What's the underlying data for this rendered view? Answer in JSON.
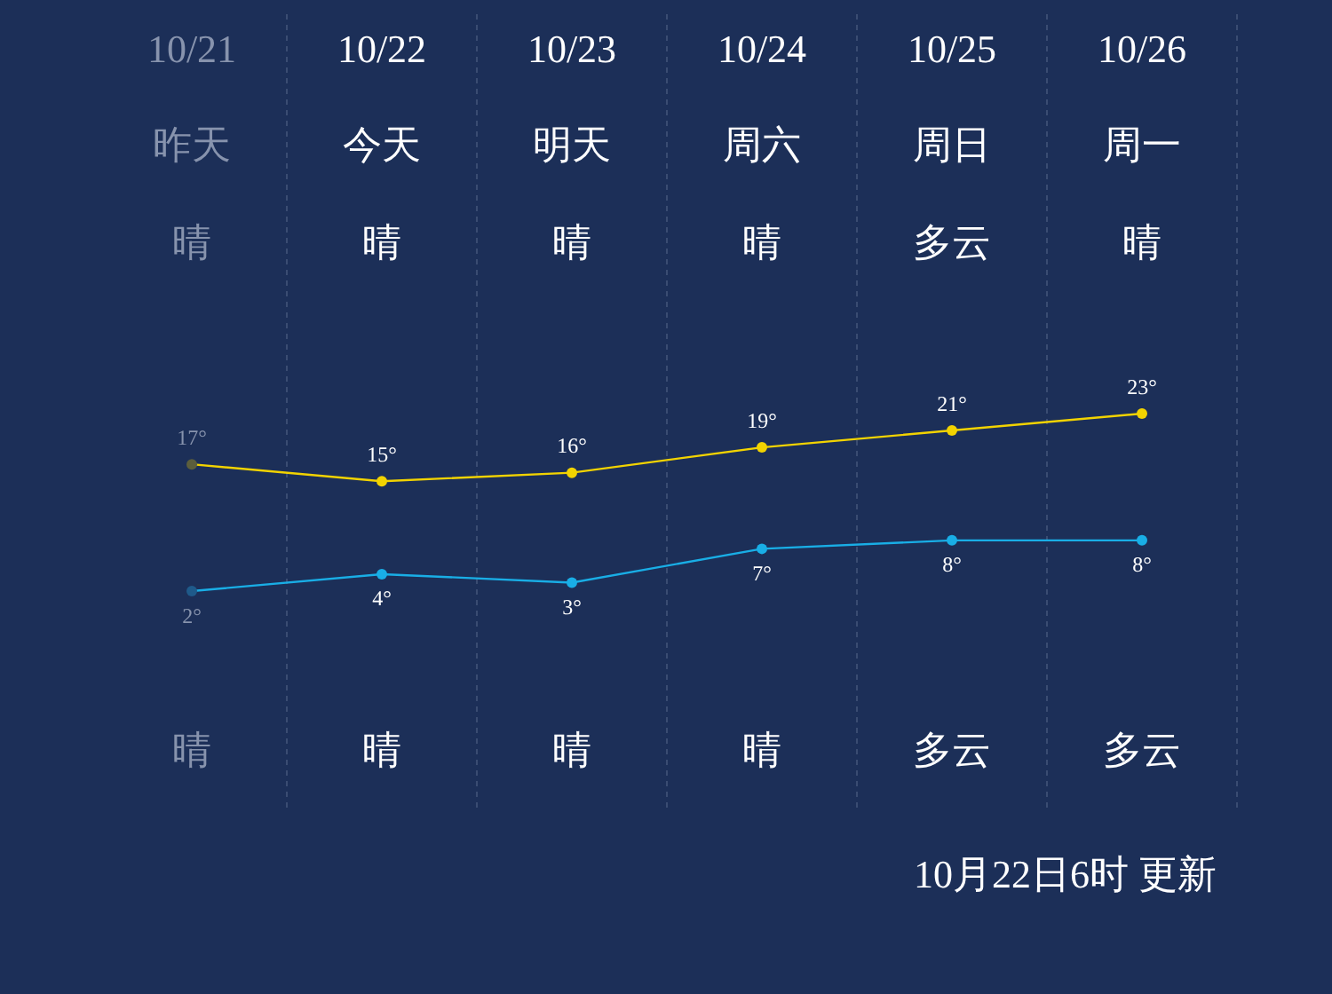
{
  "chart_data": {
    "type": "line",
    "categories": [
      "10/21",
      "10/22",
      "10/23",
      "10/24",
      "10/25",
      "10/26"
    ],
    "series": [
      {
        "color": "#f2d300",
        "colors": [
          "#5c5e3c",
          "#f2d300",
          "#f2d300",
          "#f2d300",
          "#f2d300",
          "#f2d300"
        ],
        "values": [
          17,
          15,
          16,
          19,
          21,
          23
        ],
        "value_labels": [
          "17°",
          "15°",
          "16°",
          "19°",
          "21°",
          "23°"
        ]
      },
      {
        "color": "#19aee6",
        "colors": [
          "#1f5a8a",
          "#19aee6",
          "#19aee6",
          "#19aee6",
          "#19aee6",
          "#19aee6"
        ],
        "values": [
          2,
          4,
          3,
          7,
          8,
          8
        ],
        "value_labels": [
          "2°",
          "4°",
          "3°",
          "7°",
          "8°",
          "8°"
        ]
      }
    ],
    "marker": "circle",
    "grid": "x",
    "annotations": [
      "昨天",
      "晴",
      "晴",
      "今天",
      "晴",
      "晴",
      "明天",
      "晴",
      "晴",
      "周六",
      "晴",
      "晴",
      "周日",
      "多云",
      "多云",
      "周一",
      "晴",
      "多云",
      "10月22日6时 更新"
    ]
  }
}
